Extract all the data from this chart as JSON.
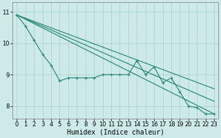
{
  "x": [
    0,
    1,
    2,
    3,
    4,
    5,
    6,
    7,
    8,
    9,
    10,
    11,
    12,
    13,
    14,
    15,
    16,
    17,
    18,
    19,
    20,
    21,
    22,
    23
  ],
  "line_wavy": [
    10.9,
    10.55,
    10.1,
    9.65,
    9.3,
    8.8,
    8.9,
    8.9,
    8.9,
    8.9,
    9.0,
    9.0,
    9.0,
    9.0,
    9.45,
    9.0,
    9.25,
    8.75,
    8.9,
    8.45,
    8.0,
    7.95,
    7.75,
    7.75
  ],
  "straight_lines": [
    {
      "x": [
        0,
        23
      ],
      "y": [
        10.9,
        8.55
      ]
    },
    {
      "x": [
        0,
        23
      ],
      "y": [
        10.9,
        8.15
      ]
    },
    {
      "x": [
        0,
        23
      ],
      "y": [
        10.9,
        7.75
      ]
    }
  ],
  "bg_color": "#ceeae8",
  "grid_color": "#aad3d0",
  "line_color": "#2e8b7a",
  "xlabel": "Humidex (Indice chaleur)",
  "xlabel_fontsize": 7,
  "tick_fontsize": 6,
  "ylim": [
    7.6,
    11.3
  ],
  "xlim": [
    -0.5,
    23.5
  ],
  "yticks": [
    8,
    9,
    10,
    11
  ],
  "xticks": [
    0,
    1,
    2,
    3,
    4,
    5,
    6,
    7,
    8,
    9,
    10,
    11,
    12,
    13,
    14,
    15,
    16,
    17,
    18,
    19,
    20,
    21,
    22,
    23
  ]
}
